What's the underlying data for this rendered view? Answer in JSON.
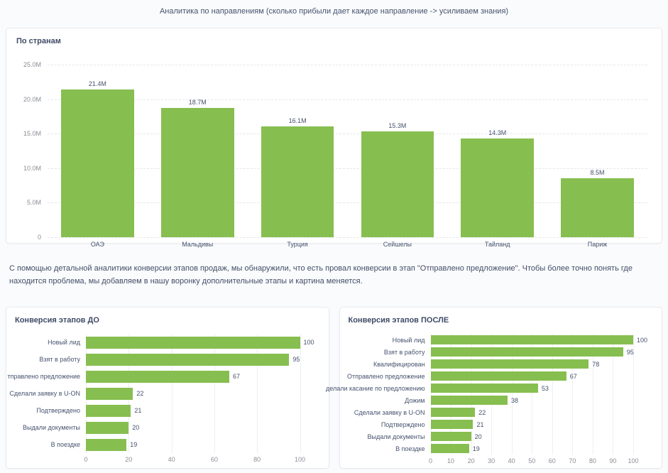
{
  "page": {
    "title": "Аналитика по направлениям (сколько прибыли дает каждое направление -> усиливаем знания)",
    "description": "С помощью детальной аналитики конверсии этапов продаж, мы обнаружили, что есть провал конверсии в этап \"Отправлено предложение\". Чтобы более точно понять где находится проблема, мы добавляем в нашу воронку дополнительные этапы и картина меняется."
  },
  "colors": {
    "bar_green": "#87be50",
    "text_dark": "#3e4a66",
    "axis_gray": "#8a8d95",
    "grid_dashed": "#e3e6ea",
    "grid_solid": "#edeff3",
    "card_border": "#e8eaef"
  },
  "chart_data": [
    {
      "id": "by_country",
      "type": "bar",
      "orientation": "vertical",
      "title": "По странам",
      "categories": [
        "ОАЭ",
        "Мальдивы",
        "Турция",
        "Сейшелы",
        "Тайланд",
        "Париж"
      ],
      "values": [
        21400000,
        18700000,
        16100000,
        15300000,
        14300000,
        8500000
      ],
      "value_labels": [
        "21.4M",
        "18.7M",
        "16.1M",
        "15.3M",
        "14.3M",
        "8.5M"
      ],
      "ylim": [
        0,
        25000000
      ],
      "ytick_labels": [
        "25.0M",
        "20.0M",
        "15.0M",
        "10.0M",
        "5.0M",
        "0"
      ],
      "grid": "horizontal-dashed",
      "legend": "none"
    },
    {
      "id": "conversion_before",
      "type": "bar",
      "orientation": "horizontal",
      "title": "Конверсия этапов ДО",
      "categories": [
        "Новый лид",
        "Взят в работу",
        "тправлено предложение",
        "Сделали заявку в U-ON",
        "Подтверждено",
        "Выдали документы",
        "В поездке"
      ],
      "values": [
        100,
        95,
        67,
        22,
        21,
        20,
        19
      ],
      "xlim": [
        0,
        100
      ],
      "xticks": [
        0,
        20,
        40,
        60,
        80,
        100
      ],
      "grid": "vertical-solid",
      "legend": "none"
    },
    {
      "id": "conversion_after",
      "type": "bar",
      "orientation": "horizontal",
      "title": "Конверсия этапов ПОСЛЕ",
      "categories": [
        "Новый лид",
        "Взят в работу",
        "Квалифицирован",
        "Отправлено предложение",
        "делали касание по предложению",
        "Дожим",
        "Сделали заявку в U-ON",
        "Подтверждено",
        "Выдали документы",
        "В поездке"
      ],
      "values": [
        100,
        95,
        78,
        67,
        53,
        38,
        22,
        21,
        20,
        19
      ],
      "xlim": [
        0,
        100
      ],
      "xticks": [
        0,
        10,
        20,
        30,
        40,
        50,
        60,
        70,
        80,
        90,
        100
      ],
      "grid": "vertical-solid",
      "legend": "none"
    }
  ]
}
